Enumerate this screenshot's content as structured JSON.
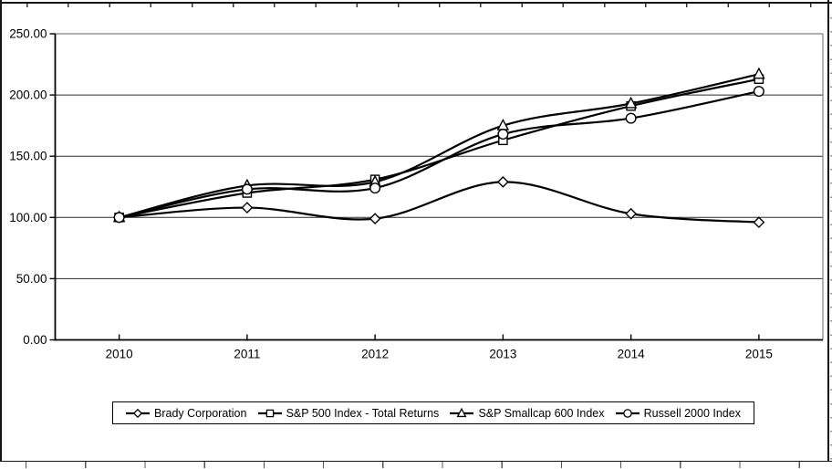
{
  "chart_data": {
    "type": "line",
    "title": "",
    "categories": [
      "2010",
      "2011",
      "2012",
      "2013",
      "2014",
      "2015"
    ],
    "series": [
      {
        "name": "Brady Corporation",
        "marker": "diamond",
        "values": [
          100,
          108,
          99,
          129,
          103,
          96
        ]
      },
      {
        "name": "S&P 500 Index - Total Returns",
        "marker": "square",
        "values": [
          100,
          120,
          131,
          163,
          191,
          213
        ]
      },
      {
        "name": "S&P Smallcap 600 Index",
        "marker": "triangle",
        "values": [
          100,
          126,
          129,
          175,
          193,
          217
        ]
      },
      {
        "name": "Russell 2000 Index",
        "marker": "circle",
        "values": [
          100,
          123,
          124,
          168,
          181,
          203
        ]
      }
    ],
    "xlabel": "",
    "ylabel": "",
    "ylim": [
      0,
      250
    ],
    "y_tick_step": 50,
    "y_tick_labels": [
      "0.00",
      "50.00",
      "100.00",
      "150.00",
      "200.00",
      "250.00"
    ],
    "grid": "horizontal",
    "legend_position": "bottom",
    "smoothed_lines": true,
    "colors": {
      "series_line": "#000000",
      "marker_fill": "#ffffff",
      "gridline": "#2a2a2a",
      "plot_border": "#808080",
      "axis": "#000000",
      "text": "#000000"
    }
  }
}
